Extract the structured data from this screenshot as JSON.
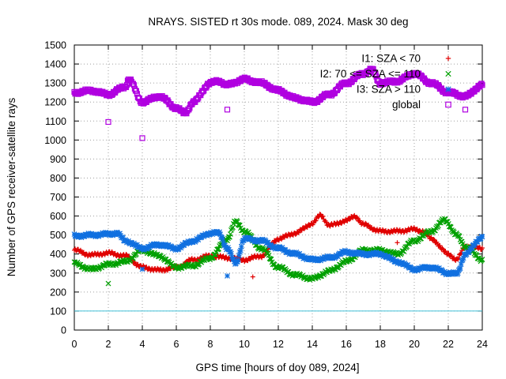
{
  "chart_data": {
    "type": "scatter",
    "title": "NRAYS. SISTED rt 30s mode. 089, 2024. Mask 30 deg",
    "xlabel": "GPS time [hours of doy 089, 2024]",
    "ylabel": "Number of GPS receiver-satellite rays",
    "xlim": [
      0,
      24
    ],
    "ylim": [
      0,
      1500
    ],
    "x_ticks": [
      "0",
      "2",
      "4",
      "6",
      "8",
      "10",
      "12",
      "14",
      "16",
      "18",
      "20",
      "22",
      "24"
    ],
    "y_ticks": [
      "0",
      "100",
      "200",
      "300",
      "400",
      "500",
      "600",
      "700",
      "800",
      "900",
      "1000",
      "1100",
      "1200",
      "1300",
      "1400",
      "1500"
    ],
    "grid": true,
    "legend_position": "top-right",
    "reference_line": {
      "y": 100,
      "color": "#40c0d8"
    },
    "series": [
      {
        "name": "I1: SZA < 70",
        "marker": "+",
        "color": "#e00000",
        "x": [
          0,
          1,
          2,
          3,
          4,
          5,
          6,
          7,
          8,
          9,
          10,
          11,
          12,
          13,
          14,
          14.5,
          15,
          16,
          16.5,
          17,
          18,
          19,
          20,
          20.5,
          21,
          22,
          22.5,
          23,
          24
        ],
        "y": [
          420,
          395,
          405,
          390,
          330,
          315,
          330,
          370,
          390,
          380,
          370,
          390,
          480,
          510,
          560,
          605,
          550,
          575,
          600,
          555,
          520,
          520,
          530,
          520,
          480,
          400,
          370,
          440,
          430
        ],
        "outliers": [
          {
            "x": 10.5,
            "y": 280
          },
          {
            "x": 19,
            "y": 460
          }
        ]
      },
      {
        "name": "I2: 70 <= SZA <= 110",
        "marker": "x",
        "color": "#00a000",
        "x": [
          0,
          1,
          2,
          3,
          4,
          5,
          6,
          7,
          8,
          9,
          9.5,
          10,
          11,
          12,
          13,
          14,
          15,
          16,
          17,
          18,
          19,
          20,
          21,
          21.8,
          22.5,
          23,
          24
        ],
        "y": [
          350,
          320,
          345,
          360,
          420,
          390,
          330,
          340,
          380,
          480,
          570,
          520,
          430,
          330,
          290,
          270,
          310,
          360,
          420,
          420,
          400,
          470,
          520,
          580,
          500,
          440,
          370
        ],
        "outliers": [
          {
            "x": 2,
            "y": 245
          }
        ]
      },
      {
        "name": "I3: SZA > 110",
        "marker": "*",
        "color": "#1070e0",
        "x": [
          0,
          1,
          2,
          2.5,
          3,
          4,
          5,
          6,
          7,
          8,
          8.5,
          9,
          9.5,
          10,
          11,
          12,
          13,
          14,
          15,
          16,
          17,
          18,
          19,
          20,
          21,
          22,
          22.5,
          23,
          24
        ],
        "y": [
          495,
          500,
          505,
          510,
          470,
          430,
          450,
          430,
          470,
          510,
          510,
          430,
          350,
          480,
          470,
          430,
          400,
          370,
          380,
          410,
          400,
          400,
          360,
          320,
          330,
          300,
          295,
          400,
          490
        ],
        "outliers": [
          {
            "x": 9,
            "y": 285
          },
          {
            "x": 4,
            "y": 320
          }
        ]
      },
      {
        "name": "global",
        "marker": "square",
        "color": "#b000e0",
        "x": [
          0,
          1,
          2,
          3,
          3.2,
          4,
          5,
          6,
          6.5,
          7,
          8,
          8.5,
          9,
          10,
          10.5,
          11,
          12,
          13,
          14,
          15,
          16,
          17,
          17.5,
          18,
          19,
          20,
          21,
          22,
          23,
          24
        ],
        "y": [
          1250,
          1260,
          1240,
          1280,
          1320,
          1200,
          1230,
          1170,
          1140,
          1200,
          1300,
          1310,
          1290,
          1320,
          1310,
          1300,
          1260,
          1220,
          1200,
          1240,
          1300,
          1350,
          1370,
          1300,
          1310,
          1350,
          1300,
          1250,
          1230,
          1290
        ],
        "outliers": [
          {
            "x": 2,
            "y": 1095
          },
          {
            "x": 4,
            "y": 1010
          },
          {
            "x": 9,
            "y": 1160
          },
          {
            "x": 23,
            "y": 1160
          }
        ]
      }
    ]
  }
}
